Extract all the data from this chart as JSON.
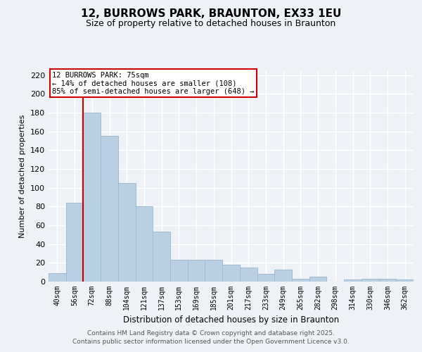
{
  "title": "12, BURROWS PARK, BRAUNTON, EX33 1EU",
  "subtitle": "Size of property relative to detached houses in Braunton",
  "xlabel": "Distribution of detached houses by size in Braunton",
  "ylabel": "Number of detached properties",
  "categories": [
    "40sqm",
    "56sqm",
    "72sqm",
    "88sqm",
    "104sqm",
    "121sqm",
    "137sqm",
    "153sqm",
    "169sqm",
    "185sqm",
    "201sqm",
    "217sqm",
    "233sqm",
    "249sqm",
    "265sqm",
    "282sqm",
    "298sqm",
    "314sqm",
    "330sqm",
    "346sqm",
    "362sqm"
  ],
  "values": [
    9,
    84,
    180,
    155,
    105,
    80,
    53,
    23,
    23,
    23,
    18,
    15,
    8,
    13,
    3,
    5,
    0,
    2,
    3,
    3,
    2
  ],
  "bar_color": "#b8cfe4",
  "bar_edge_color": "#9dbdd6",
  "marker_color": "#cc0000",
  "annotation_title": "12 BURROWS PARK: 75sqm",
  "annotation_line1": "← 14% of detached houses are smaller (108)",
  "annotation_line2": "85% of semi-detached houses are larger (648) →",
  "annotation_box_color": "#ffffff",
  "annotation_box_edge": "#cc0000",
  "ylim": [
    0,
    225
  ],
  "yticks": [
    0,
    20,
    40,
    60,
    80,
    100,
    120,
    140,
    160,
    180,
    200,
    220
  ],
  "footer1": "Contains HM Land Registry data © Crown copyright and database right 2025.",
  "footer2": "Contains public sector information licensed under the Open Government Licence v3.0.",
  "bg_color": "#eef2f7",
  "grid_color": "#ffffff"
}
